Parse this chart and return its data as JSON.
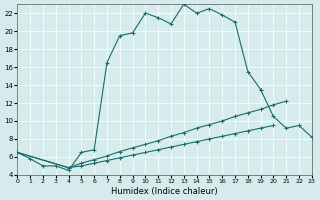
{
  "xlabel": "Humidex (Indice chaleur)",
  "background_color": "#d6ecec",
  "grid_color": "#ffffff",
  "line_color": "#1a6b6b",
  "xlim": [
    0,
    23
  ],
  "ylim": [
    4,
    23
  ],
  "xticks": [
    0,
    1,
    2,
    3,
    4,
    5,
    6,
    7,
    8,
    9,
    10,
    11,
    12,
    13,
    14,
    15,
    16,
    17,
    18,
    19,
    20,
    21,
    22,
    23
  ],
  "yticks": [
    4,
    6,
    8,
    10,
    12,
    14,
    16,
    18,
    20,
    22
  ],
  "line1_x": [
    0,
    1,
    2,
    3,
    4,
    5,
    6,
    7,
    8,
    9,
    10,
    11,
    12,
    13,
    14,
    15,
    16,
    17,
    18,
    19
  ],
  "line1_y": [
    6.5,
    5.8,
    5.0,
    5.0,
    4.5,
    6.5,
    6.8,
    16.5,
    19.5,
    19.8,
    22.0,
    21.5,
    20.8,
    23.0,
    22.0,
    22.5,
    21.8,
    21.0,
    15.5,
    13.5
  ],
  "line2_x": [
    0,
    4,
    5,
    6,
    7,
    8,
    9,
    10,
    11,
    12,
    13,
    14,
    15,
    16,
    17,
    18,
    19,
    20,
    21
  ],
  "line2_y": [
    6.5,
    4.8,
    5.3,
    5.7,
    6.1,
    6.6,
    7.0,
    7.4,
    7.8,
    8.3,
    8.7,
    9.2,
    9.6,
    10.0,
    10.5,
    10.9,
    11.3,
    11.8,
    12.2
  ],
  "line3_x": [
    0,
    4,
    5,
    6,
    7,
    8,
    9,
    10,
    11,
    12,
    13,
    14,
    15,
    16,
    17,
    18,
    19,
    20
  ],
  "line3_y": [
    6.5,
    4.8,
    5.0,
    5.3,
    5.6,
    5.9,
    6.2,
    6.5,
    6.8,
    7.1,
    7.4,
    7.7,
    8.0,
    8.3,
    8.6,
    8.9,
    9.2,
    9.5
  ],
  "line4_x": [
    19,
    20,
    21,
    22,
    23
  ],
  "line4_y": [
    13.5,
    10.5,
    9.2,
    9.5,
    8.2
  ]
}
